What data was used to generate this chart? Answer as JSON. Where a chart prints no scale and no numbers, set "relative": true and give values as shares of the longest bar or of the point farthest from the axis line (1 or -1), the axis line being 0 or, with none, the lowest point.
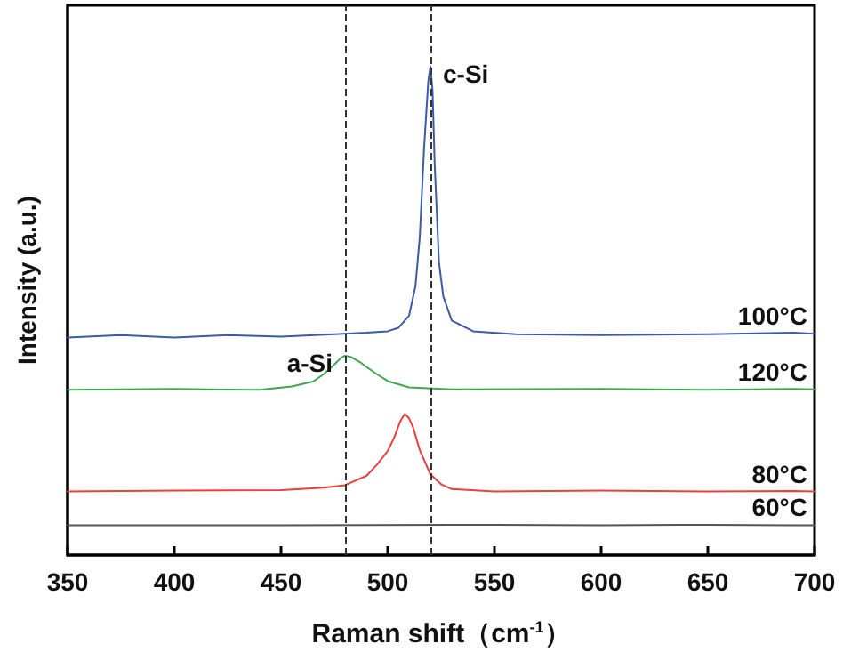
{
  "chart_data": {
    "type": "line",
    "xlabel": "Raman shift（cm$^{-1}$）",
    "ylabel": "Intensity (a.u.)",
    "relative": true,
    "xlim": [
      350,
      700
    ],
    "xticks": [
      350,
      400,
      450,
      500,
      550,
      600,
      650,
      700
    ],
    "tick_labels": "x",
    "grid": false,
    "legend": false,
    "marker": "none",
    "line_style": "solid",
    "series": [
      {
        "name": "100°C",
        "color": "#3a5ba8",
        "x": [
          350,
          375,
          400,
          425,
          450,
          475,
          490,
          500,
          505,
          510,
          513,
          515,
          517,
          519,
          520,
          521,
          522,
          524,
          526,
          530,
          540,
          560,
          600,
          650,
          690,
          700
        ],
        "values": [
          0.445,
          0.45,
          0.445,
          0.45,
          0.447,
          0.452,
          0.455,
          0.458,
          0.465,
          0.49,
          0.55,
          0.65,
          0.83,
          0.97,
          1,
          0.95,
          0.8,
          0.6,
          0.53,
          0.48,
          0.458,
          0.452,
          0.45,
          0.452,
          0.455,
          0.453
        ]
      },
      {
        "name": "120°C",
        "color": "#3fa652",
        "x": [
          350,
          400,
          440,
          455,
          465,
          470,
          475,
          478,
          480,
          483,
          487,
          490,
          495,
          500,
          510,
          530,
          600,
          650,
          690,
          700
        ],
        "values": [
          0.338,
          0.34,
          0.338,
          0.345,
          0.355,
          0.37,
          0.39,
          0.403,
          0.408,
          0.405,
          0.395,
          0.385,
          0.37,
          0.356,
          0.343,
          0.339,
          0.34,
          0.338,
          0.34,
          0.339
        ]
      },
      {
        "name": "80°C",
        "color": "#e8403a",
        "x": [
          350,
          400,
          450,
          470,
          480,
          490,
          495,
          500,
          503,
          506,
          508,
          510,
          512,
          515,
          520,
          525,
          530,
          550,
          600,
          650,
          690,
          700
        ],
        "values": [
          0.13,
          0.132,
          0.133,
          0.138,
          0.143,
          0.162,
          0.185,
          0.213,
          0.24,
          0.275,
          0.289,
          0.28,
          0.26,
          0.215,
          0.165,
          0.145,
          0.135,
          0.13,
          0.132,
          0.13,
          0.131,
          0.13
        ]
      },
      {
        "name": "60°C",
        "color": "#555555",
        "x": [
          350,
          450,
          550,
          600,
          650,
          690,
          700
        ],
        "values": [
          0.061,
          0.061,
          0.062,
          0.061,
          0.062,
          0.061,
          0.061
        ]
      }
    ],
    "ref_lines": [
      {
        "axis": "x",
        "value": 480,
        "line_style": "dashed",
        "color": "#333333"
      },
      {
        "axis": "x",
        "value": 520,
        "line_style": "dashed",
        "color": "#333333"
      }
    ],
    "annotations": [
      {
        "text": "c-Si",
        "x": 520,
        "y": 1
      },
      {
        "text": "a-Si",
        "x": 480,
        "y": 0.408
      }
    ]
  }
}
